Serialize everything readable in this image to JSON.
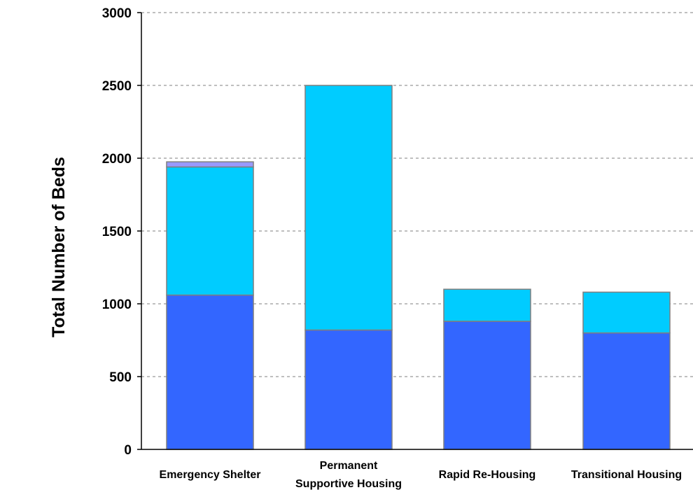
{
  "chart_data": {
    "type": "bar",
    "stacked": true,
    "title": "",
    "xlabel": "",
    "ylabel": "Total Number of Beds",
    "ylim": [
      0,
      3000
    ],
    "yticks": [
      0,
      500,
      1000,
      1500,
      2000,
      2500,
      3000
    ],
    "grid": true,
    "legend": "none",
    "categories": [
      "Emergency Shelter",
      "Permanent Supportive Housing",
      "Rapid Re-Housing",
      "Transitional Housing"
    ],
    "category_lines": [
      [
        "Emergency Shelter"
      ],
      [
        "Permanent",
        "Supportive Housing"
      ],
      [
        "Rapid Re-Housing"
      ],
      [
        "Transitional Housing"
      ]
    ],
    "series": [
      {
        "color": "#3366ff",
        "values": [
          1060,
          820,
          880,
          800
        ]
      },
      {
        "color": "#00ccff",
        "values": [
          880,
          1680,
          220,
          280
        ]
      },
      {
        "color": "#9999ff",
        "values": [
          35,
          0,
          0,
          0
        ]
      }
    ]
  }
}
